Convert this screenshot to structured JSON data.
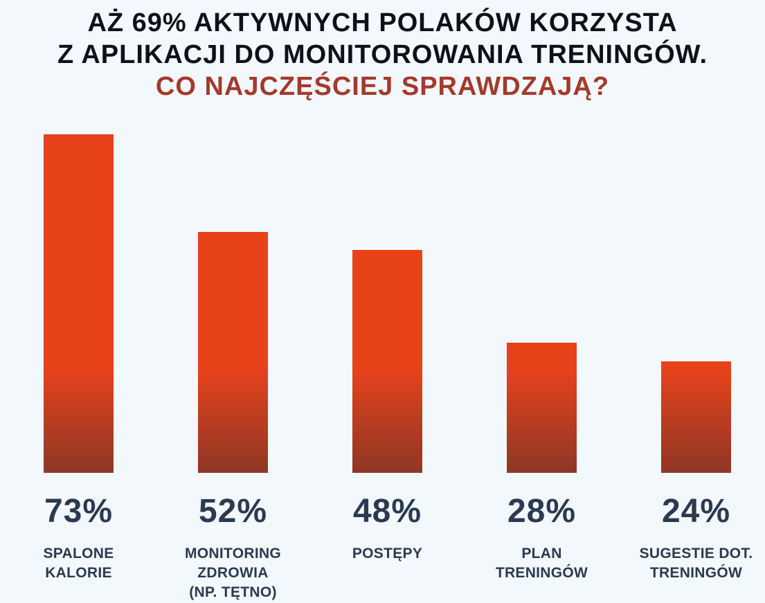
{
  "header": {
    "title_line1": "AŻ 69% AKTYWNYCH POLAKÓW KORZYSTA",
    "title_line2": "Z APLIKACJI DO MONITOROWANIA TRENINGÓW.",
    "subtitle": "CO NAJCZĘŚCIEJ SPRAWDZAJĄ?"
  },
  "chart_data": {
    "type": "bar",
    "title": "AŻ 69% AKTYWNYCH POLAKÓW KORZYSTA Z APLIKACJI DO MONITOROWANIA TRENINGÓW.",
    "subtitle": "CO NAJCZĘŚCIEJ SPRAWDZAJĄ?",
    "categories": [
      "SPALONE KALORIE",
      "MONITORING ZDROWIA (NP. TĘTNO)",
      "POSTĘPY",
      "PLAN TRENINGÓW",
      "SUGESTIE DOT. TRENINGÓW"
    ],
    "category_lines": [
      [
        "SPALONE",
        "KALORIE"
      ],
      [
        "MONITORING",
        "ZDROWIA",
        "(NP. TĘTNO)"
      ],
      [
        "POSTĘPY"
      ],
      [
        "PLAN",
        "TRENINGÓW"
      ],
      [
        "SUGESTIE DOT.",
        "TRENINGÓW"
      ]
    ],
    "values": [
      73,
      52,
      48,
      28,
      24
    ],
    "value_labels": [
      "73%",
      "52%",
      "48%",
      "28%",
      "24%"
    ],
    "unit": "%",
    "ylim": [
      0,
      100
    ],
    "grid": false,
    "legend": false,
    "axes_visible": false,
    "value_label_position": "below-bar"
  },
  "colors": {
    "background": "#F3F8FC",
    "bar_gradient_top": "#E8421B",
    "bar_gradient_bottom": "#8E3727",
    "title_text": "#0D1218",
    "subtitle_text": "#A33A2B",
    "label_text": "#2B3A50"
  }
}
